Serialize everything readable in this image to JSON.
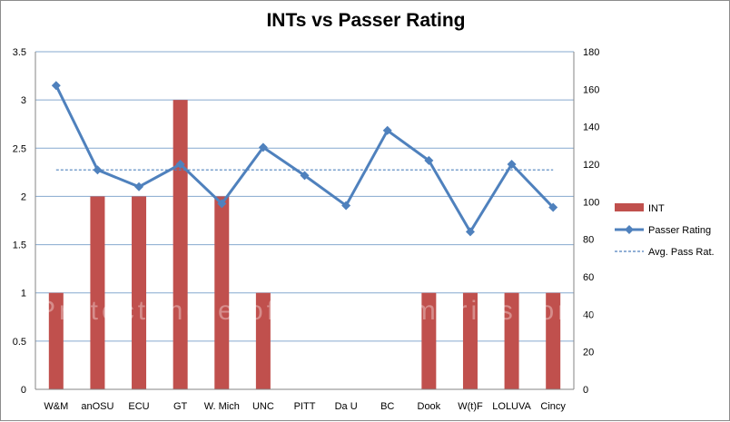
{
  "chart_data": {
    "type": "bar",
    "title": "INTs vs Passer Rating",
    "categories": [
      "W&M",
      "anOSU",
      "ECU",
      "GT",
      "W. Mich",
      "UNC",
      "PITT",
      "Da U",
      "BC",
      "Dook",
      "W(t)F",
      "LOLUVA",
      "Cincy"
    ],
    "series": [
      {
        "name": "INT",
        "type": "bar",
        "axis": "left",
        "color": "#c0504d",
        "values": [
          1,
          2,
          2,
          3,
          2,
          1,
          0,
          0,
          0,
          1,
          1,
          1,
          1
        ]
      },
      {
        "name": "Passer Rating",
        "type": "line",
        "axis": "right",
        "color": "#4f81bd",
        "values": [
          162,
          117,
          108,
          120,
          99,
          129,
          114,
          98,
          138,
          122,
          84,
          120,
          97
        ]
      },
      {
        "name": "Avg. Pass Rat.",
        "type": "line",
        "dashed": true,
        "axis": "right",
        "color": "#4f81bd",
        "values": [
          117,
          117,
          117,
          117,
          117,
          117,
          117,
          117,
          117,
          117,
          117,
          117,
          117
        ]
      }
    ],
    "y_left": {
      "min": 0,
      "max": 3.5,
      "ticks": [
        "0",
        "0.5",
        "1",
        "1.5",
        "2",
        "2.5",
        "3",
        "3.5"
      ]
    },
    "y_right": {
      "min": 0,
      "max": 180,
      "ticks": [
        "0",
        "20",
        "40",
        "60",
        "80",
        "100",
        "120",
        "140",
        "160",
        "180"
      ]
    },
    "grid": true,
    "legend_position": "right"
  }
}
